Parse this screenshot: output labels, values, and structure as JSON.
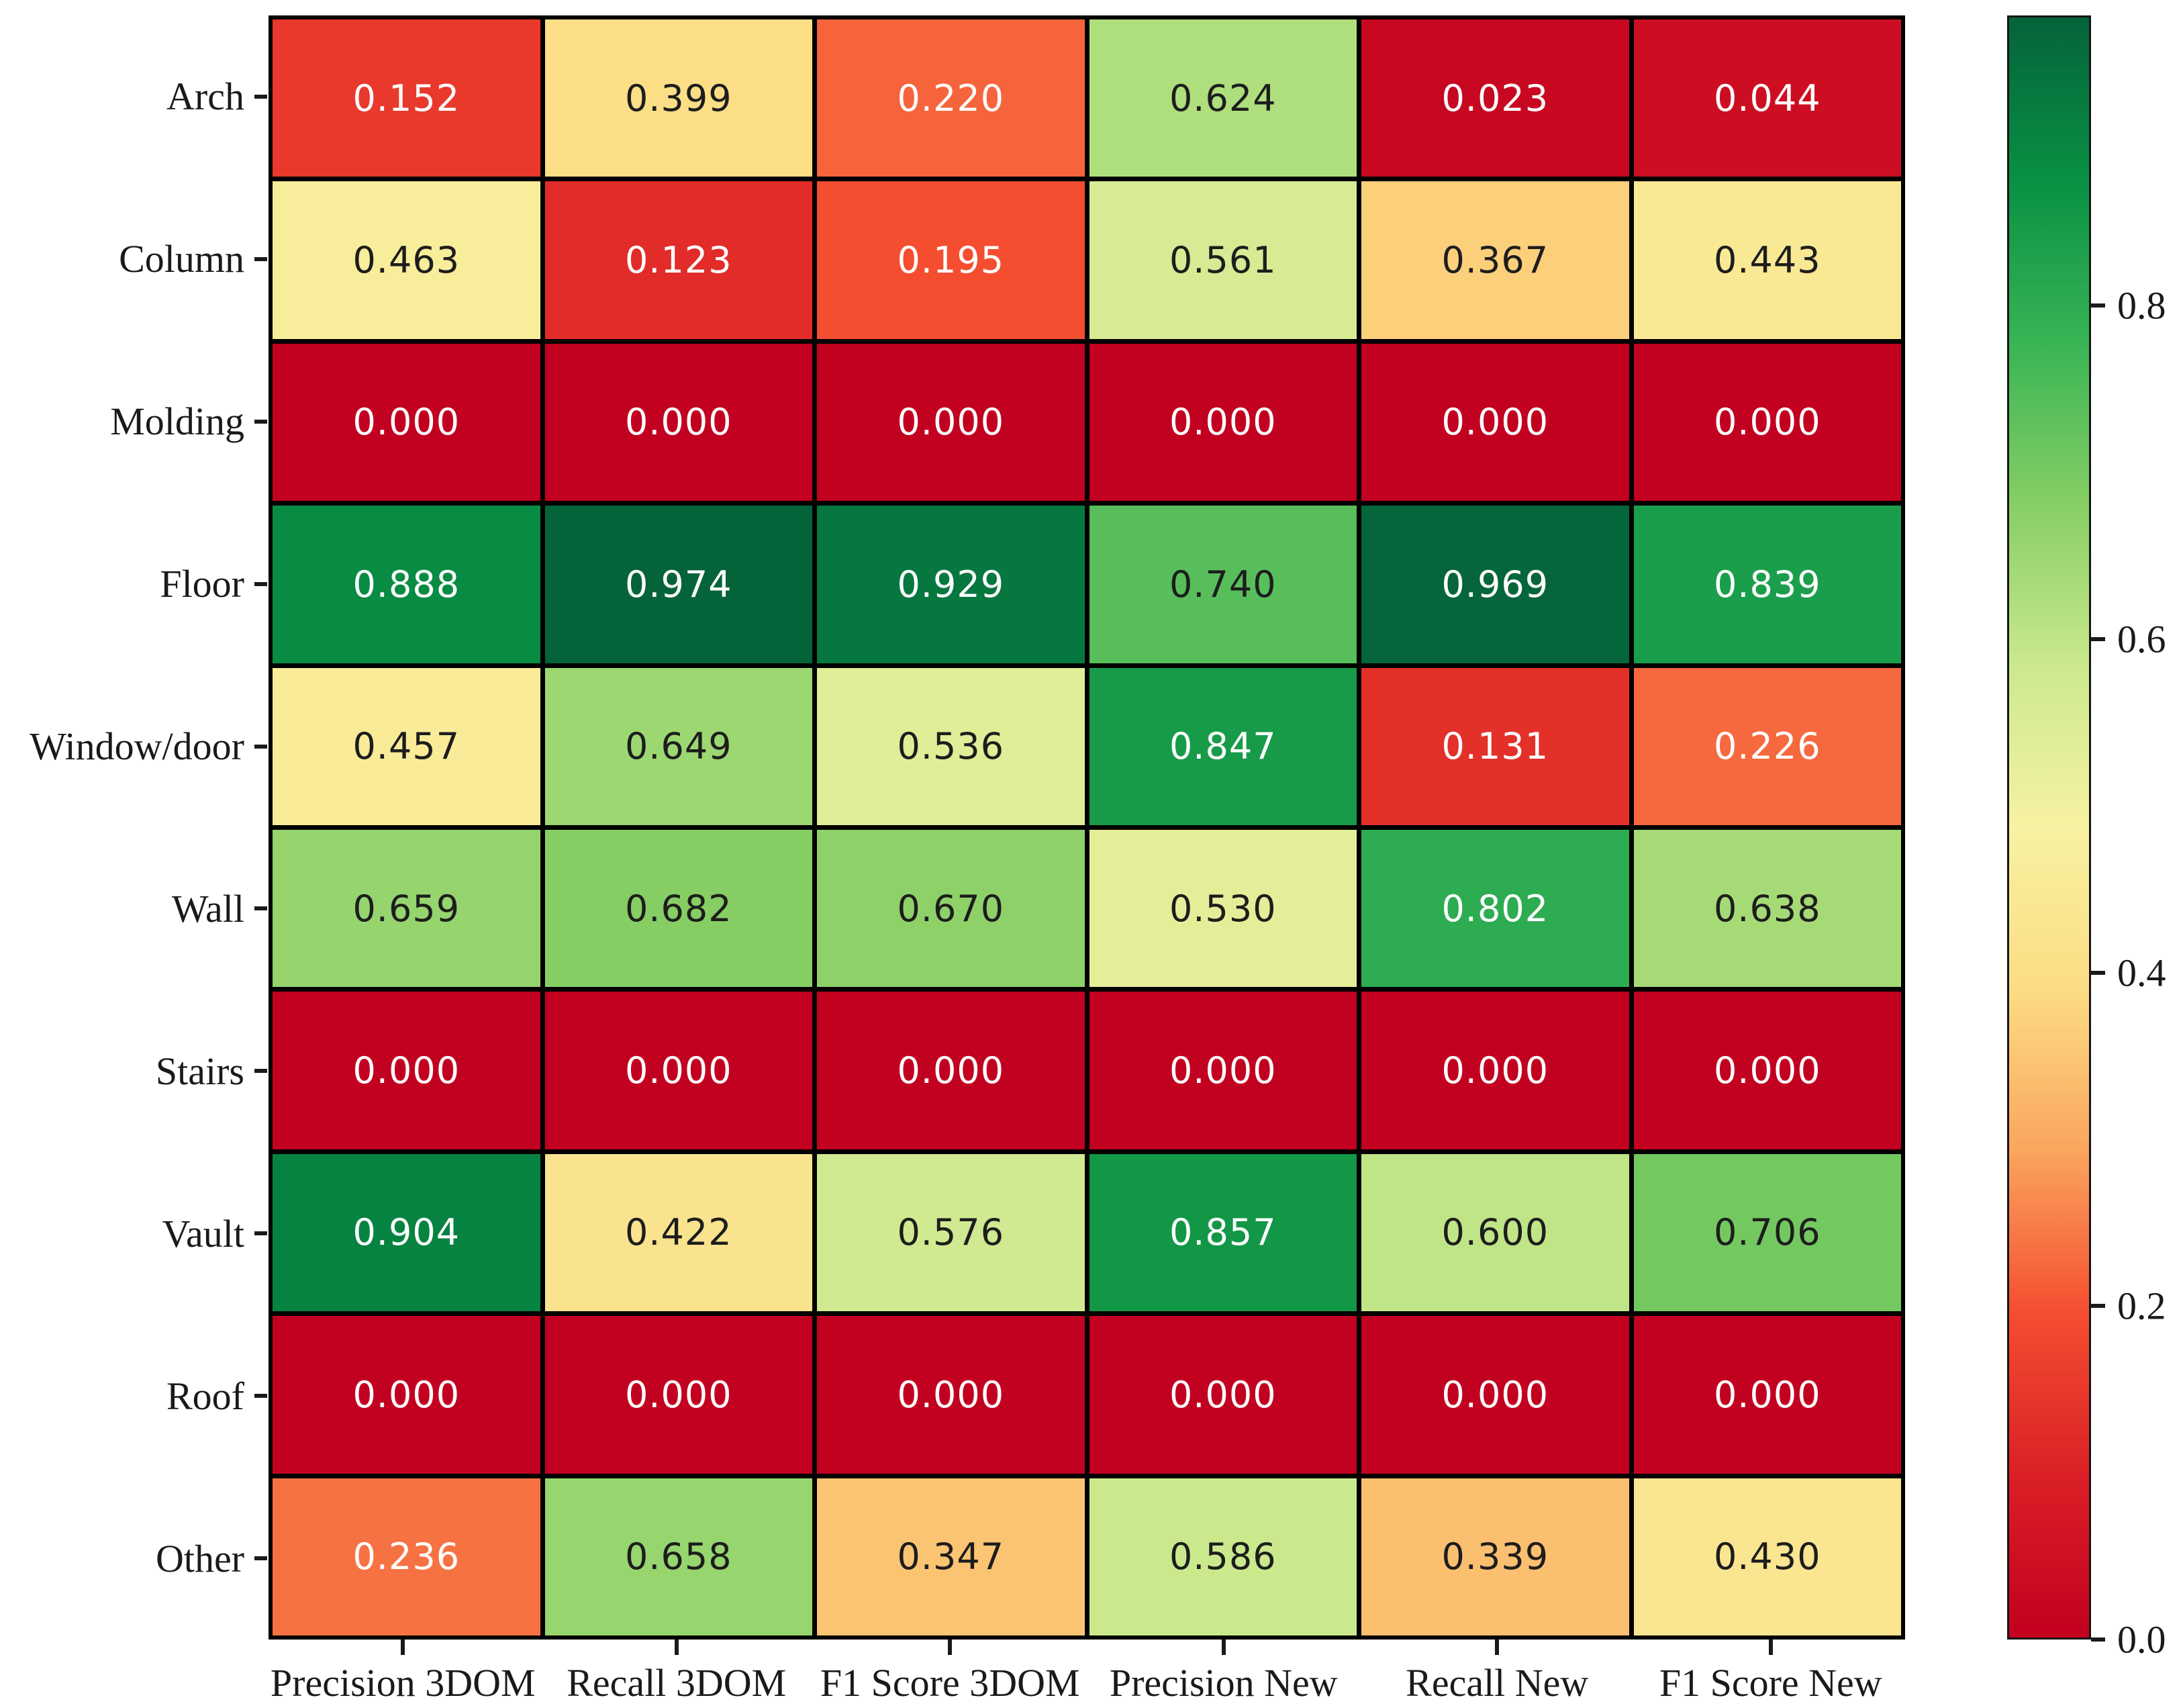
{
  "chart_data": {
    "type": "heatmap",
    "title": "",
    "xlabel": "",
    "ylabel": "",
    "y_categories": [
      "Arch",
      "Column",
      "Molding",
      "Floor",
      "Window/door",
      "Wall",
      "Stairs",
      "Vault",
      "Roof",
      "Other"
    ],
    "x_categories": [
      "Precision 3DOM",
      "Recall 3DOM",
      "F1 Score 3DOM",
      "Precision New",
      "Recall New",
      "F1 Score New"
    ],
    "values": [
      [
        0.152,
        0.399,
        0.22,
        0.624,
        0.023,
        0.044
      ],
      [
        0.463,
        0.123,
        0.195,
        0.561,
        0.367,
        0.443
      ],
      [
        0.0,
        0.0,
        0.0,
        0.0,
        0.0,
        0.0
      ],
      [
        0.888,
        0.974,
        0.929,
        0.74,
        0.969,
        0.839
      ],
      [
        0.457,
        0.649,
        0.536,
        0.847,
        0.131,
        0.226
      ],
      [
        0.659,
        0.682,
        0.67,
        0.53,
        0.802,
        0.638
      ],
      [
        0.0,
        0.0,
        0.0,
        0.0,
        0.0,
        0.0
      ],
      [
        0.904,
        0.422,
        0.576,
        0.857,
        0.6,
        0.706
      ],
      [
        0.0,
        0.0,
        0.0,
        0.0,
        0.0,
        0.0
      ],
      [
        0.236,
        0.658,
        0.347,
        0.586,
        0.339,
        0.43
      ]
    ],
    "annotation_decimals": 3,
    "vmin": 0.0,
    "vmax": 0.974,
    "colormap": "RdYlGn",
    "colormap_stops": [
      "#c2001f",
      "#da2026",
      "#f44d30",
      "#faa55e",
      "#fcdc84",
      "#f7f2a1",
      "#cbe98e",
      "#86ce64",
      "#38b455",
      "#089044",
      "#05633a"
    ],
    "colorbar": {
      "position": "right",
      "tick_labels": [
        "0.0",
        "0.2",
        "0.4",
        "0.6",
        "0.8"
      ],
      "tick_values": [
        0.0,
        0.2,
        0.4,
        0.6,
        0.8
      ]
    },
    "grid": "black cell borders",
    "legend": "none",
    "colors": {
      "annotation_light": "#ffffff",
      "annotation_dark": "#1d1d1d",
      "grid_line": "#000000",
      "axis_text": "#1a1a1a",
      "background": "#ffffff"
    }
  }
}
